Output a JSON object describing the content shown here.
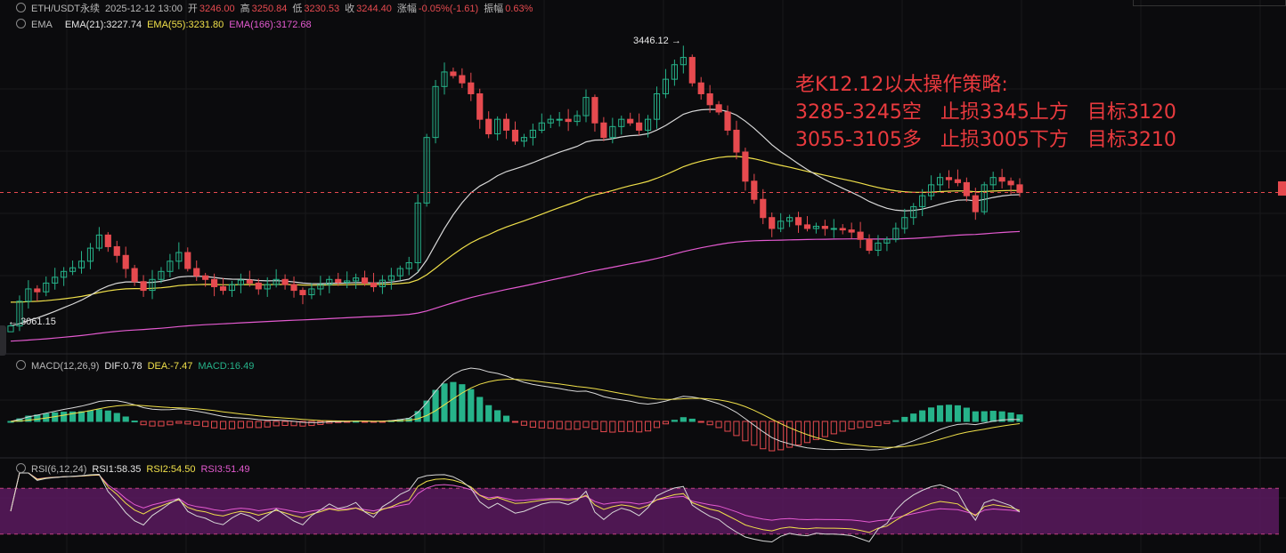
{
  "chart_data": {
    "type": "candlestick",
    "header": {
      "symbol": "ETH/USDT永续",
      "datetime": "2025-12-12 13:00",
      "open_label": "开",
      "open": "3246.00",
      "high_label": "高",
      "high": "3250.84",
      "low_label": "低",
      "low": "3230.53",
      "close_label": "收",
      "close": "3244.40",
      "change_label": "涨幅",
      "change": "-0.05%(-1.61)",
      "amplitude_label": "振幅",
      "amplitude": "0.63%"
    },
    "ema_legend": {
      "name": "EMA",
      "ema21": "EMA(21):3227.74",
      "ema55": "EMA(55):3231.80",
      "ema166": "EMA(166):3172.68"
    },
    "macd_legend": {
      "name": "MACD(12,26,9)",
      "dif": "DIF:0.78",
      "dea": "DEA:-7.47",
      "macd": "MACD:16.49"
    },
    "rsi_legend": {
      "name": "RSI(6,12,24)",
      "rsi1": "RSI1:58.35",
      "rsi2": "RSI2:54.50",
      "rsi3": "RSI3:51.49"
    },
    "max_label": "3446.12",
    "min_label": "3061.15",
    "note": {
      "line1": "老K12.12以太操作策略:",
      "line2": "3285-3245空   止损3345上方   目标3120",
      "line3": "3055-3105多   止损3005下方   目标3210"
    },
    "close_series": [
      3061.15,
      3095,
      3112,
      3108,
      3120,
      3128,
      3136,
      3141,
      3150,
      3168,
      3186,
      3170,
      3158,
      3140,
      3122,
      3110,
      3125,
      3136,
      3150,
      3162,
      3140,
      3130,
      3125,
      3115,
      3110,
      3118,
      3124,
      3120,
      3112,
      3118,
      3125,
      3118,
      3110,
      3104,
      3112,
      3118,
      3125,
      3121,
      3123,
      3127,
      3120,
      3115,
      3124,
      3130,
      3140,
      3148,
      3230,
      3320,
      3390,
      3410,
      3405,
      3395,
      3380,
      3345,
      3325,
      3345,
      3330,
      3315,
      3320,
      3330,
      3340,
      3345,
      3345,
      3342,
      3350,
      3375,
      3340,
      3320,
      3335,
      3345,
      3340,
      3330,
      3345,
      3380,
      3400,
      3420,
      3430,
      3395,
      3380,
      3365,
      3355,
      3330,
      3300,
      3260,
      3235,
      3210,
      3195,
      3205,
      3210,
      3200,
      3195,
      3198,
      3195,
      3195,
      3193,
      3190,
      3180,
      3165,
      3175,
      3180,
      3195,
      3210,
      3225,
      3240,
      3255,
      3265,
      3262,
      3258,
      3240,
      3218,
      3255,
      3265,
      3260,
      3255,
      3244.4
    ],
    "colors": {
      "up": "#26b38a",
      "down": "#e64a4f",
      "ema21": "#d8d8d8",
      "ema55": "#f0e04a",
      "ema166": "#e45ad0",
      "rsi_band": "#5b1a5f"
    },
    "rsi_levels": [
      80,
      20
    ],
    "grid": true
  }
}
